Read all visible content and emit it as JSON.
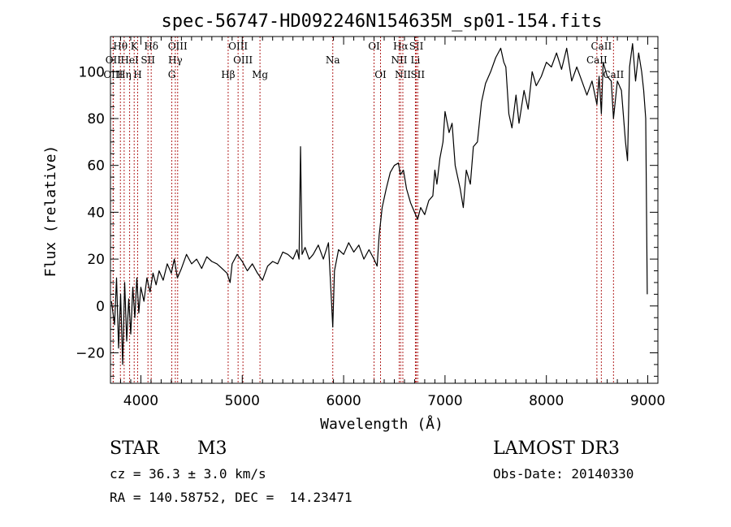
{
  "chart_data": {
    "type": "line",
    "title": "spec-56747-HD092246N154635M_sp01-154.fits",
    "xlabel": "Wavelength (Å)",
    "ylabel": "Flux (relative)",
    "xlim": [
      3700,
      9100
    ],
    "ylim": [
      -33,
      115
    ],
    "x_ticks": [
      4000,
      5000,
      6000,
      7000,
      8000,
      9000
    ],
    "y_ticks": [
      -20,
      0,
      20,
      40,
      60,
      80,
      100
    ],
    "series": [
      {
        "name": "flux",
        "points": [
          [
            3710,
            2
          ],
          [
            3740,
            -8
          ],
          [
            3760,
            12
          ],
          [
            3780,
            -18
          ],
          [
            3800,
            5
          ],
          [
            3820,
            -25
          ],
          [
            3840,
            10
          ],
          [
            3860,
            -15
          ],
          [
            3880,
            3
          ],
          [
            3900,
            -12
          ],
          [
            3920,
            8
          ],
          [
            3940,
            -5
          ],
          [
            3960,
            12
          ],
          [
            3980,
            -3
          ],
          [
            4000,
            8
          ],
          [
            4030,
            2
          ],
          [
            4060,
            12
          ],
          [
            4090,
            6
          ],
          [
            4120,
            14
          ],
          [
            4150,
            9
          ],
          [
            4180,
            15
          ],
          [
            4220,
            11
          ],
          [
            4260,
            18
          ],
          [
            4300,
            14
          ],
          [
            4330,
            20
          ],
          [
            4360,
            12
          ],
          [
            4400,
            16
          ],
          [
            4450,
            22
          ],
          [
            4500,
            18
          ],
          [
            4550,
            20
          ],
          [
            4600,
            16
          ],
          [
            4650,
            21
          ],
          [
            4700,
            19
          ],
          [
            4750,
            18
          ],
          [
            4800,
            16
          ],
          [
            4850,
            14
          ],
          [
            4880,
            10
          ],
          [
            4900,
            18
          ],
          [
            4950,
            22
          ],
          [
            5000,
            19
          ],
          [
            5050,
            15
          ],
          [
            5100,
            18
          ],
          [
            5150,
            14
          ],
          [
            5200,
            11
          ],
          [
            5250,
            17
          ],
          [
            5300,
            19
          ],
          [
            5350,
            18
          ],
          [
            5400,
            23
          ],
          [
            5450,
            22
          ],
          [
            5500,
            20
          ],
          [
            5540,
            24
          ],
          [
            5560,
            20
          ],
          [
            5575,
            68
          ],
          [
            5590,
            22
          ],
          [
            5620,
            25
          ],
          [
            5660,
            20
          ],
          [
            5700,
            22
          ],
          [
            5750,
            26
          ],
          [
            5800,
            20
          ],
          [
            5850,
            27
          ],
          [
            5880,
            2
          ],
          [
            5893,
            -9
          ],
          [
            5910,
            15
          ],
          [
            5950,
            24
          ],
          [
            6000,
            22
          ],
          [
            6050,
            27
          ],
          [
            6100,
            23
          ],
          [
            6150,
            26
          ],
          [
            6200,
            20
          ],
          [
            6250,
            24
          ],
          [
            6300,
            20
          ],
          [
            6330,
            17
          ],
          [
            6350,
            30
          ],
          [
            6380,
            42
          ],
          [
            6420,
            50
          ],
          [
            6460,
            57
          ],
          [
            6500,
            60
          ],
          [
            6540,
            61
          ],
          [
            6560,
            56
          ],
          [
            6590,
            58
          ],
          [
            6620,
            50
          ],
          [
            6660,
            44
          ],
          [
            6700,
            40
          ],
          [
            6730,
            37
          ],
          [
            6760,
            42
          ],
          [
            6800,
            39
          ],
          [
            6840,
            45
          ],
          [
            6880,
            47
          ],
          [
            6900,
            58
          ],
          [
            6920,
            52
          ],
          [
            6950,
            63
          ],
          [
            6980,
            70
          ],
          [
            7000,
            83
          ],
          [
            7040,
            74
          ],
          [
            7070,
            78
          ],
          [
            7100,
            60
          ],
          [
            7150,
            50
          ],
          [
            7180,
            42
          ],
          [
            7210,
            58
          ],
          [
            7250,
            52
          ],
          [
            7280,
            68
          ],
          [
            7320,
            70
          ],
          [
            7360,
            87
          ],
          [
            7400,
            95
          ],
          [
            7450,
            100
          ],
          [
            7500,
            106
          ],
          [
            7550,
            110
          ],
          [
            7580,
            104
          ],
          [
            7600,
            102
          ],
          [
            7630,
            82
          ],
          [
            7660,
            76
          ],
          [
            7700,
            90
          ],
          [
            7730,
            78
          ],
          [
            7780,
            92
          ],
          [
            7820,
            84
          ],
          [
            7860,
            100
          ],
          [
            7900,
            94
          ],
          [
            7950,
            98
          ],
          [
            8000,
            104
          ],
          [
            8050,
            102
          ],
          [
            8100,
            108
          ],
          [
            8150,
            101
          ],
          [
            8200,
            110
          ],
          [
            8250,
            96
          ],
          [
            8300,
            102
          ],
          [
            8350,
            96
          ],
          [
            8400,
            90
          ],
          [
            8450,
            96
          ],
          [
            8498,
            86
          ],
          [
            8520,
            98
          ],
          [
            8542,
            82
          ],
          [
            8560,
            104
          ],
          [
            8600,
            98
          ],
          [
            8640,
            96
          ],
          [
            8662,
            80
          ],
          [
            8700,
            96
          ],
          [
            8740,
            92
          ],
          [
            8780,
            70
          ],
          [
            8800,
            62
          ],
          [
            8820,
            102
          ],
          [
            8850,
            112
          ],
          [
            8880,
            96
          ],
          [
            8910,
            108
          ],
          [
            8940,
            100
          ],
          [
            8960,
            92
          ],
          [
            8980,
            80
          ],
          [
            8995,
            5
          ]
        ]
      }
    ],
    "line_markers": [
      {
        "label": "Hθ",
        "x": 3798,
        "row": 1
      },
      {
        "label": "K",
        "x": 3934,
        "row": 1
      },
      {
        "label": "Hδ",
        "x": 4102,
        "row": 1
      },
      {
        "label": "OIII",
        "x": 4363,
        "row": 1
      },
      {
        "label": "OIII",
        "x": 4959,
        "row": 1
      },
      {
        "label": "OI",
        "x": 6300,
        "row": 1
      },
      {
        "label": "Hα",
        "x": 6563,
        "row": 1
      },
      {
        "label": "SII",
        "x": 6717,
        "row": 1
      },
      {
        "label": "CaII",
        "x": 8542,
        "row": 1
      },
      {
        "label": "OII",
        "x": 3727,
        "row": 2
      },
      {
        "label": "HeI",
        "x": 3889,
        "row": 2
      },
      {
        "label": "SII",
        "x": 4070,
        "row": 2
      },
      {
        "label": "Hγ",
        "x": 4340,
        "row": 2
      },
      {
        "label": "OIII",
        "x": 5007,
        "row": 2
      },
      {
        "label": "Na",
        "x": 5893,
        "row": 2
      },
      {
        "label": "NII",
        "x": 6548,
        "row": 2
      },
      {
        "label": "Li",
        "x": 6708,
        "row": 2
      },
      {
        "label": "CaII",
        "x": 8498,
        "row": 2
      },
      {
        "label": "OIII",
        "x": 3727,
        "row": 3
      },
      {
        "label": "Hη",
        "x": 3835,
        "row": 3
      },
      {
        "label": "H",
        "x": 3968,
        "row": 3
      },
      {
        "label": "G",
        "x": 4305,
        "row": 3
      },
      {
        "label": "Hβ",
        "x": 4861,
        "row": 3
      },
      {
        "label": "Mg",
        "x": 5175,
        "row": 3
      },
      {
        "label": "OI",
        "x": 6364,
        "row": 3
      },
      {
        "label": "NII",
        "x": 6584,
        "row": 3
      },
      {
        "label": "SII",
        "x": 6731,
        "row": 3
      },
      {
        "label": "CaII",
        "x": 8662,
        "row": 3
      }
    ]
  },
  "info": {
    "object_class": "STAR",
    "subclass": "M3",
    "survey": "LAMOST DR3",
    "redshift": "cz = 36.3 ± 3.0 km/s",
    "obs_date": "Obs-Date: 20140330",
    "coords": "RA = 140.58752, DEC =  14.23471"
  }
}
